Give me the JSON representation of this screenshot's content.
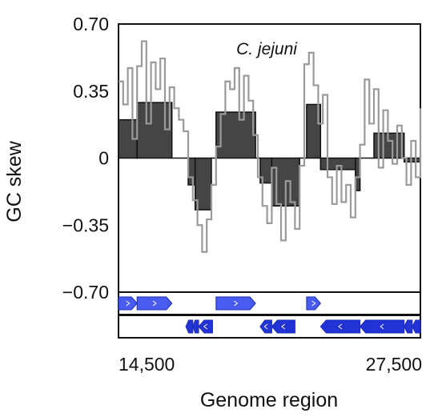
{
  "chart_data": {
    "type": "bar",
    "title": "",
    "annotation": "C. jejuni",
    "xlabel": "Genome region",
    "ylabel": "GC skew",
    "ylim": [
      -0.7,
      0.7
    ],
    "yticks": [
      {
        "value": 0.7,
        "label": "0.70"
      },
      {
        "value": 0.35,
        "label": "0.35"
      },
      {
        "value": 0,
        "label": "0"
      },
      {
        "value": -0.35,
        "label": "−0.35"
      },
      {
        "value": -0.7,
        "label": "−0.70"
      }
    ],
    "xlim": [
      14500,
      27500
    ],
    "xticks": [
      {
        "value": 14500,
        "label": "14,500"
      },
      {
        "value": 27500,
        "label": "27,500"
      }
    ],
    "colors": {
      "bar_fill": "#454545",
      "bar_stroke": "#111111",
      "line": "#9a9a9a",
      "gene_fill": "#4a5cf0",
      "gene_fill_dark": "#2233d6",
      "gene_stroke": "#1a2bb8"
    },
    "series": [
      {
        "type": "bar",
        "bars": [
          {
            "x0": 14500,
            "x1": 15300,
            "y": 0.2
          },
          {
            "x0": 15300,
            "x1": 16800,
            "y": 0.29
          },
          {
            "x0": 16800,
            "x1": 17500,
            "y": 0.0
          },
          {
            "x0": 17500,
            "x1": 17800,
            "y": -0.14
          },
          {
            "x0": 17800,
            "x1": 18500,
            "y": -0.27
          },
          {
            "x0": 18500,
            "x1": 18700,
            "y": 0.0
          },
          {
            "x0": 18700,
            "x1": 20400,
            "y": 0.24
          },
          {
            "x0": 20400,
            "x1": 20600,
            "y": 0.0
          },
          {
            "x0": 20600,
            "x1": 21100,
            "y": -0.13
          },
          {
            "x0": 21100,
            "x1": 22300,
            "y": -0.25
          },
          {
            "x0": 22300,
            "x1": 22600,
            "y": 0.0
          },
          {
            "x0": 22600,
            "x1": 23200,
            "y": 0.28
          },
          {
            "x0": 23200,
            "x1": 24700,
            "y": -0.06
          },
          {
            "x0": 24700,
            "x1": 24900,
            "y": -0.17
          },
          {
            "x0": 24900,
            "x1": 25500,
            "y": 0.0
          },
          {
            "x0": 25500,
            "x1": 26800,
            "y": 0.13
          },
          {
            "x0": 26800,
            "x1": 27500,
            "y": -0.02
          }
        ]
      },
      {
        "type": "line",
        "points": [
          [
            14500,
            0.4
          ],
          [
            14700,
            0.28
          ],
          [
            14900,
            0.47
          ],
          [
            15100,
            0.1
          ],
          [
            15300,
            0.48
          ],
          [
            15500,
            0.61
          ],
          [
            15700,
            0.18
          ],
          [
            15900,
            0.5
          ],
          [
            16100,
            0.36
          ],
          [
            16300,
            0.52
          ],
          [
            16500,
            0.15
          ],
          [
            16700,
            0.37
          ],
          [
            16900,
            0.26
          ],
          [
            17100,
            0.2
          ],
          [
            17300,
            0.14
          ],
          [
            17500,
            -0.1
          ],
          [
            17700,
            -0.22
          ],
          [
            17900,
            -0.35
          ],
          [
            18100,
            -0.49
          ],
          [
            18300,
            -0.32
          ],
          [
            18500,
            -0.14
          ],
          [
            18700,
            0.06
          ],
          [
            18900,
            0.23
          ],
          [
            19100,
            0.4
          ],
          [
            19300,
            0.36
          ],
          [
            19500,
            0.47
          ],
          [
            19700,
            0.2
          ],
          [
            19900,
            0.43
          ],
          [
            20100,
            0.3
          ],
          [
            20300,
            0.12
          ],
          [
            20500,
            -0.1
          ],
          [
            20700,
            -0.25
          ],
          [
            20900,
            -0.34
          ],
          [
            21100,
            -0.05
          ],
          [
            21300,
            -0.24
          ],
          [
            21500,
            -0.43
          ],
          [
            21700,
            -0.12
          ],
          [
            21900,
            -0.23
          ],
          [
            22100,
            -0.37
          ],
          [
            22300,
            -0.04
          ],
          [
            22500,
            0.49
          ],
          [
            22700,
            0.55
          ],
          [
            22900,
            0.38
          ],
          [
            23100,
            0.18
          ],
          [
            23300,
            0.33
          ],
          [
            23500,
            -0.1
          ],
          [
            23700,
            -0.24
          ],
          [
            23900,
            -0.04
          ],
          [
            24100,
            -0.23
          ],
          [
            24300,
            -0.14
          ],
          [
            24500,
            -0.31
          ],
          [
            24700,
            -0.1
          ],
          [
            24900,
            0.07
          ],
          [
            25100,
            0.41
          ],
          [
            25300,
            0.18
          ],
          [
            25500,
            0.36
          ],
          [
            25700,
            -0.05
          ],
          [
            25900,
            0.25
          ],
          [
            26100,
            0.09
          ],
          [
            26300,
            -0.03
          ],
          [
            26500,
            0.17
          ],
          [
            26700,
            0.0
          ],
          [
            26900,
            -0.14
          ],
          [
            27100,
            0.09
          ],
          [
            27300,
            -0.1
          ],
          [
            27500,
            0.26
          ]
        ]
      }
    ],
    "gene_tracks": [
      {
        "strand": "forward",
        "genes": [
          {
            "start": 14500,
            "end": 15300
          },
          {
            "start": 15300,
            "end": 16800
          },
          {
            "start": 18700,
            "end": 20400
          },
          {
            "start": 22600,
            "end": 23200
          }
        ]
      },
      {
        "strand": "reverse",
        "genes": [
          {
            "start": 17400,
            "end": 17700
          },
          {
            "start": 17700,
            "end": 17950
          },
          {
            "start": 17950,
            "end": 18550
          },
          {
            "start": 20600,
            "end": 21100
          },
          {
            "start": 21100,
            "end": 22100
          },
          {
            "start": 23200,
            "end": 24900
          },
          {
            "start": 24900,
            "end": 26800
          },
          {
            "start": 26800,
            "end": 27150
          },
          {
            "start": 27150,
            "end": 27500
          }
        ]
      }
    ]
  }
}
